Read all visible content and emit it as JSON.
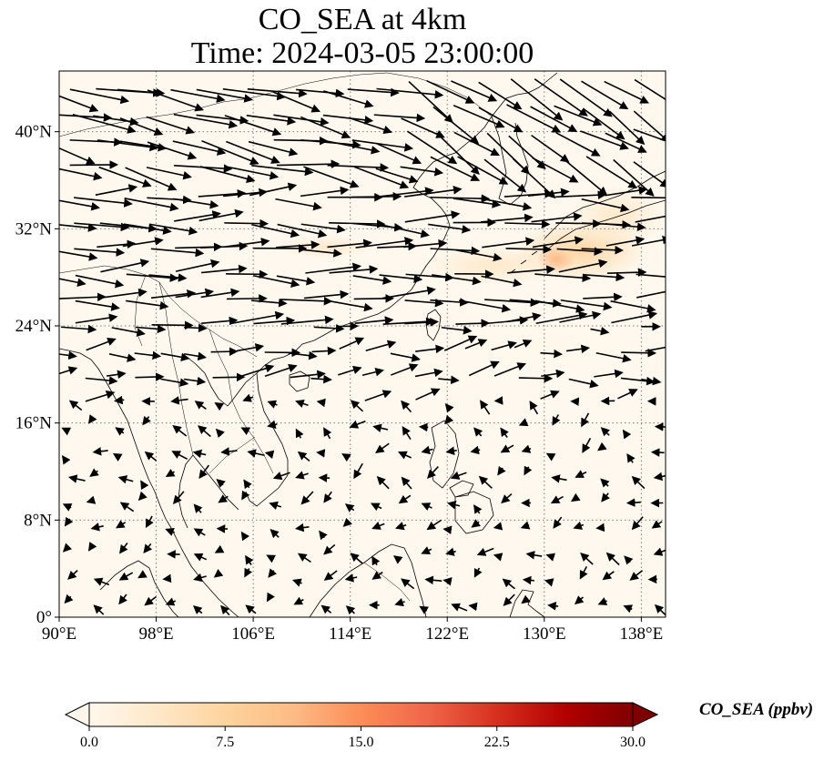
{
  "title": {
    "line1": "CO_SEA at 4km",
    "line2": "Time: 2024-03-05 23:00:00"
  },
  "map": {
    "projection": "PlateCarree",
    "extent": {
      "lon": [
        90,
        140
      ],
      "lat": [
        0,
        45
      ]
    },
    "gridlines": "dotted",
    "background_color": "#fff8ee",
    "lon_ticks": [
      {
        "value": 90,
        "label": "90°E"
      },
      {
        "value": 98,
        "label": "98°E"
      },
      {
        "value": 106,
        "label": "106°E"
      },
      {
        "value": 114,
        "label": "114°E"
      },
      {
        "value": 122,
        "label": "122°E"
      },
      {
        "value": 130,
        "label": "130°E"
      },
      {
        "value": 138,
        "label": "138°E"
      }
    ],
    "lat_ticks": [
      {
        "value": 0,
        "label": "0°"
      },
      {
        "value": 8,
        "label": "8°N"
      },
      {
        "value": 16,
        "label": "16°N"
      },
      {
        "value": 24,
        "label": "24°N"
      },
      {
        "value": 32,
        "label": "32°N"
      },
      {
        "value": 40,
        "label": "40°N"
      }
    ]
  },
  "colorbar": {
    "label": "CO_SEA (ppbv)",
    "colormap": "OrRd",
    "range": [
      0,
      30
    ],
    "extend": "both",
    "ticks": [
      {
        "value": 0,
        "label": "0.0"
      },
      {
        "value": 7.5,
        "label": "7.5"
      },
      {
        "value": 15,
        "label": "15.0"
      },
      {
        "value": 22.5,
        "label": "22.5"
      },
      {
        "value": 30,
        "label": "30.0"
      }
    ],
    "colors": [
      "#fff7ec",
      "#fee8c8",
      "#fdd49e",
      "#fdbb84",
      "#fc8d59",
      "#ef6548",
      "#d7301f",
      "#b30000",
      "#7f0000"
    ]
  },
  "co_plumes": [
    {
      "lon": 131,
      "lat": 29.5,
      "lon_radius": 1.6,
      "lat_radius": 1.1,
      "value": 14
    },
    {
      "lon": 133,
      "lat": 30.2,
      "lon_radius": 5.5,
      "lat_radius": 2.5,
      "value": 7
    },
    {
      "lon": 136,
      "lat": 33,
      "lon_radius": 4,
      "lat_radius": 2.5,
      "value": 5
    },
    {
      "lon": 126,
      "lat": 29,
      "lon_radius": 6,
      "lat_radius": 1.6,
      "value": 3
    },
    {
      "lon": 130,
      "lat": 22.5,
      "lon_radius": 10,
      "lat_radius": 2.5,
      "value": 1.5
    },
    {
      "lon": 112,
      "lat": 30.5,
      "lon_radius": 4,
      "lat_radius": 0.9,
      "value": 2
    },
    {
      "lon": 120,
      "lat": 20,
      "lon_radius": 6,
      "lat_radius": 2,
      "value": 1
    }
  ],
  "wind_field": {
    "grid_spacing_deg": 2.1,
    "reference": "westerly flow north of ~24°N, weak variable flow over the South China Sea"
  }
}
